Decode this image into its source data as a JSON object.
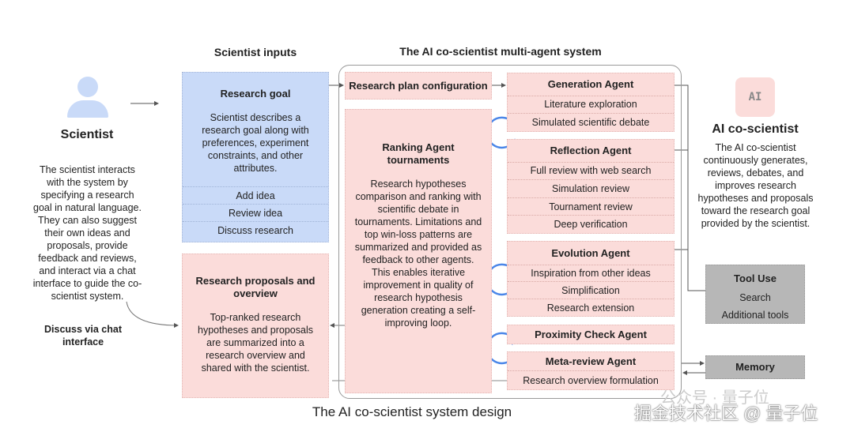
{
  "scientist": {
    "title": "Scientist",
    "description": "The scientist interacts with the system by specifying a research goal in natural language. They can also suggest their own ideas and proposals, provide feedback and reviews, and interact via a chat interface to guide the co-scientist system.",
    "chat_label": "Discuss via chat interface"
  },
  "inputs": {
    "title": "Scientist inputs",
    "goal_title": "Research goal",
    "goal_text": "Scientist describes a research goal along with preferences, experiment constraints, and other attributes.",
    "actions": [
      "Add idea",
      "Review idea",
      "Discuss research"
    ],
    "proposals_title": "Research proposals and overview",
    "proposals_text": "Top-ranked research hypotheses and proposals are summarized into a research overview and shared with the scientist."
  },
  "system": {
    "title": "The AI co-scientist multi-agent system",
    "plan": "Research plan configuration",
    "ranking_title": "Ranking Agent tournaments",
    "ranking_text": "Research hypotheses comparison and ranking with scientific debate in tournaments. Limitations and top win-loss patterns are summarized and provided as feedback to other agents. This enables iterative improvement in quality of research hypothesis generation creating a self-improving  loop.",
    "agents": [
      {
        "name": "Generation Agent",
        "items": [
          "Literature exploration",
          "Simulated scientific debate"
        ]
      },
      {
        "name": "Reflection Agent",
        "items": [
          "Full review with web search",
          "Simulation review",
          "Tournament review",
          "Deep verification"
        ]
      },
      {
        "name": "Evolution Agent",
        "items": [
          "Inspiration from other ideas",
          "Simplification",
          "Research extension"
        ]
      },
      {
        "name": "Proximity Check Agent",
        "items": []
      },
      {
        "name": "Meta-review Agent",
        "items": [
          "Research overview formulation"
        ]
      }
    ]
  },
  "ai": {
    "badge": "AI",
    "title": "AI co-scientist",
    "description": "The AI co-scientist continuously generates, reviews, debates, and improves research hypotheses and proposals toward the research goal provided by the scientist."
  },
  "tools": {
    "title": "Tool Use",
    "items": [
      "Search",
      "Additional tools"
    ]
  },
  "memory": {
    "title": "Memory"
  },
  "caption": "The AI co-scientist system design",
  "watermark": {
    "line1": "公众号 · 量子位",
    "line2": "掘金技术社区 @ 量子位"
  },
  "colors": {
    "blue": "#c9daf8",
    "pink": "#fbdcda",
    "gray": "#b7b7b7",
    "loop": "#4a86e8"
  }
}
